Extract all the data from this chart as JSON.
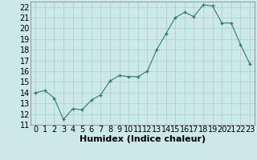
{
  "x": [
    0,
    1,
    2,
    3,
    4,
    5,
    6,
    7,
    8,
    9,
    10,
    11,
    12,
    13,
    14,
    15,
    16,
    17,
    18,
    19,
    20,
    21,
    22,
    23
  ],
  "y": [
    14.0,
    14.2,
    13.5,
    11.5,
    12.5,
    12.4,
    13.3,
    13.8,
    15.1,
    15.6,
    15.5,
    15.5,
    16.0,
    18.0,
    19.5,
    21.0,
    21.5,
    21.1,
    22.2,
    22.1,
    20.5,
    20.5,
    18.5,
    16.7
  ],
  "xlabel": "Humidex (Indice chaleur)",
  "xlim": [
    -0.5,
    23.5
  ],
  "ylim": [
    11,
    22.5
  ],
  "yticks": [
    11,
    12,
    13,
    14,
    15,
    16,
    17,
    18,
    19,
    20,
    21,
    22
  ],
  "xticks": [
    0,
    1,
    2,
    3,
    4,
    5,
    6,
    7,
    8,
    9,
    10,
    11,
    12,
    13,
    14,
    15,
    16,
    17,
    18,
    19,
    20,
    21,
    22,
    23
  ],
  "line_color": "#2e7d6e",
  "marker_color": "#2e7d6e",
  "bg_color": "#cce8e8",
  "grid_color": "#aacece",
  "xlabel_fontsize": 8,
  "tick_fontsize": 7
}
